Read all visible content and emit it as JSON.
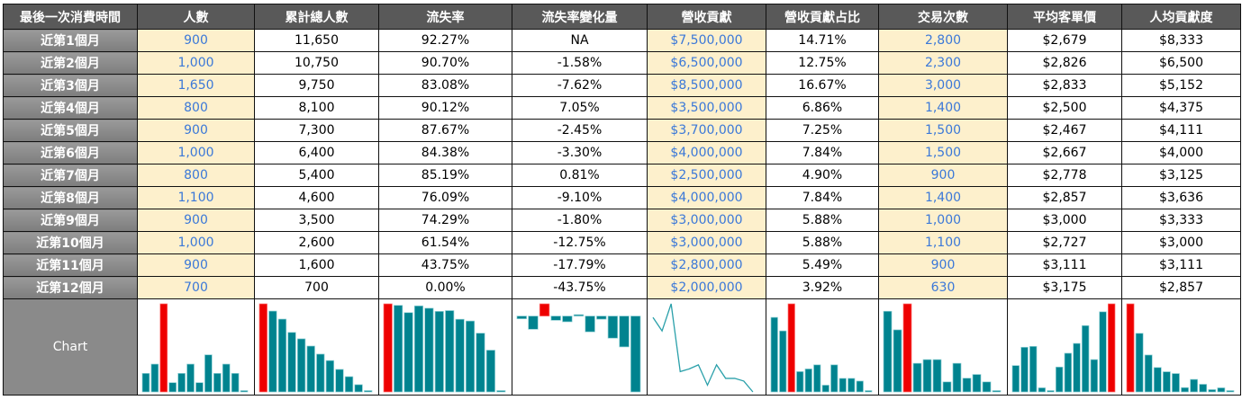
{
  "headers": [
    "最後一次消費時間",
    "人數",
    "累計總人數",
    "流失率",
    "流失率變化量",
    "營收貢獻",
    "營收貢獻占比",
    "交易次數",
    "平均客單價",
    "人均貢獻度"
  ],
  "rows": [
    [
      "近第1個月",
      "900",
      "11,650",
      "92.27%",
      "NA",
      "$7,500,000",
      "14.71%",
      "2,800",
      "$2,679",
      "$8,333"
    ],
    [
      "近第2個月",
      "1,000",
      "10,750",
      "90.70%",
      "-1.58%",
      "$6,500,000",
      "12.75%",
      "2,300",
      "$2,826",
      "$6,500"
    ],
    [
      "近第3個月",
      "1,650",
      "9,750",
      "83.08%",
      "-7.62%",
      "$8,500,000",
      "16.67%",
      "3,000",
      "$2,833",
      "$5,152"
    ],
    [
      "近第4個月",
      "800",
      "8,100",
      "90.12%",
      "7.05%",
      "$3,500,000",
      "6.86%",
      "1,400",
      "$2,500",
      "$4,375"
    ],
    [
      "近第5個月",
      "900",
      "7,300",
      "87.67%",
      "-2.45%",
      "$3,700,000",
      "7.25%",
      "1,500",
      "$2,467",
      "$4,111"
    ],
    [
      "近第6個月",
      "1,000",
      "6,400",
      "84.38%",
      "-3.30%",
      "$4,000,000",
      "7.84%",
      "1,500",
      "$2,667",
      "$4,000"
    ],
    [
      "近第7個月",
      "800",
      "5,400",
      "85.19%",
      "0.81%",
      "$2,500,000",
      "4.90%",
      "900",
      "$2,778",
      "$3,125"
    ],
    [
      "近第8個月",
      "1,100",
      "4,600",
      "76.09%",
      "-9.10%",
      "$4,000,000",
      "7.84%",
      "1,400",
      "$2,857",
      "$3,636"
    ],
    [
      "近第9個月",
      "900",
      "3,500",
      "74.29%",
      "-1.80%",
      "$3,000,000",
      "5.88%",
      "1,000",
      "$3,000",
      "$3,333"
    ],
    [
      "近第10個月",
      "1,000",
      "2,600",
      "61.54%",
      "-12.75%",
      "$3,000,000",
      "5.88%",
      "1,100",
      "$2,727",
      "$3,000"
    ],
    [
      "近第11個月",
      "900",
      "1,600",
      "43.75%",
      "-17.79%",
      "$2,800,000",
      "5.49%",
      "900",
      "$3,111",
      "$3,111"
    ],
    [
      "近第12個月",
      "700",
      "700",
      "0.00%",
      "-43.75%",
      "$2,000,000",
      "3.92%",
      "630",
      "$3,175",
      "$2,857"
    ]
  ],
  "highlight_columns": [
    1,
    5,
    7
  ],
  "chart_label": "Chart",
  "sparklines": [
    {
      "type": "bar",
      "values": [
        900,
        1000,
        1650,
        800,
        900,
        1000,
        800,
        1100,
        900,
        1000,
        900,
        700
      ]
    },
    {
      "type": "bar",
      "values": [
        11650,
        10750,
        9750,
        8100,
        7300,
        6400,
        5400,
        4600,
        3500,
        2600,
        1600,
        700
      ]
    },
    {
      "type": "bar",
      "values": [
        92.27,
        90.7,
        83.08,
        90.12,
        87.67,
        84.38,
        85.19,
        76.09,
        74.29,
        61.54,
        43.75,
        0
      ]
    },
    {
      "type": "bar-signed",
      "values": [
        -1.58,
        -7.62,
        7.05,
        -2.45,
        -3.3,
        0.81,
        -9.1,
        -1.8,
        -12.75,
        -17.79,
        -43.75
      ]
    },
    {
      "type": "line",
      "values": [
        7500000,
        6500000,
        8500000,
        3500000,
        3700000,
        4000000,
        2500000,
        4000000,
        3000000,
        3000000,
        2800000,
        2000000
      ]
    },
    {
      "type": "bar",
      "values": [
        14.71,
        12.75,
        16.67,
        6.86,
        7.25,
        7.84,
        4.9,
        7.84,
        5.88,
        5.88,
        5.49,
        3.92
      ]
    },
    {
      "type": "bar",
      "values": [
        2800,
        2300,
        3000,
        1400,
        1500,
        1500,
        900,
        1400,
        1000,
        1100,
        900,
        630
      ]
    },
    {
      "type": "bar",
      "values": [
        2679,
        2826,
        2833,
        2500,
        2467,
        2667,
        2778,
        2857,
        3000,
        2727,
        3111,
        3175
      ]
    },
    {
      "type": "bar",
      "values": [
        8333,
        6500,
        5152,
        4375,
        4111,
        4000,
        3125,
        3636,
        3333,
        3000,
        3111,
        2857
      ]
    }
  ],
  "colors": {
    "bar": "#00838f",
    "max": "#ee0000",
    "line": "#2aa0aa",
    "header": "#595959",
    "highlight_bg": "#fdf0cc",
    "highlight_text": "#3b78d8"
  }
}
